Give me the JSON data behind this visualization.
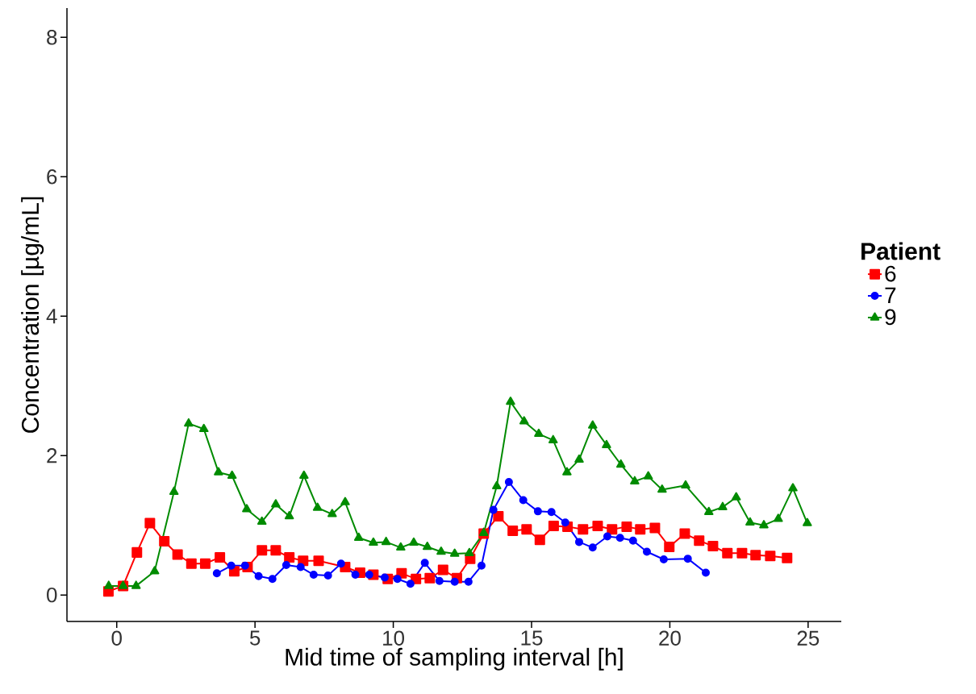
{
  "chart_data": {
    "type": "line",
    "xlabel": "Mid time of sampling interval [h]",
    "ylabel": "Concentration [µg/mL]",
    "legend_title": "Patient",
    "xlim": [
      -1.8,
      26.2
    ],
    "ylim": [
      -0.38,
      8.42
    ],
    "xticks": [
      0,
      5,
      10,
      15,
      20,
      25
    ],
    "yticks": [
      0,
      2,
      4,
      6,
      8
    ],
    "grid": false,
    "legend": "right",
    "line_style": "solid",
    "series": [
      {
        "name": "6",
        "color": "#ff0000",
        "marker": "square",
        "x": [
          -0.3,
          0.23,
          0.73,
          1.2,
          1.72,
          2.2,
          2.7,
          3.2,
          3.73,
          4.25,
          4.73,
          5.25,
          5.75,
          6.24,
          6.74,
          7.3,
          8.26,
          8.8,
          9.28,
          9.8,
          10.3,
          10.82,
          11.32,
          11.8,
          12.3,
          12.78,
          13.27,
          13.8,
          14.32,
          14.82,
          15.3,
          15.8,
          16.3,
          16.86,
          17.39,
          17.91,
          18.44,
          18.93,
          19.46,
          19.98,
          20.54,
          21.06,
          21.56,
          22.08,
          22.61,
          23.1,
          23.63,
          24.24
        ],
        "values": [
          0.05,
          0.13,
          0.61,
          1.03,
          0.77,
          0.58,
          0.45,
          0.45,
          0.54,
          0.34,
          0.4,
          0.64,
          0.64,
          0.54,
          0.49,
          0.49,
          0.4,
          0.32,
          0.29,
          0.23,
          0.31,
          0.23,
          0.24,
          0.36,
          0.24,
          0.52,
          0.88,
          1.13,
          0.92,
          0.94,
          0.79,
          0.99,
          0.98,
          0.94,
          0.99,
          0.94,
          0.98,
          0.94,
          0.96,
          0.69,
          0.88,
          0.78,
          0.7,
          0.6,
          0.6,
          0.57,
          0.56,
          0.53
        ]
      },
      {
        "name": "7",
        "color": "#0000ff",
        "marker": "circle",
        "x": [
          3.62,
          4.14,
          4.64,
          5.13,
          5.63,
          6.13,
          6.65,
          7.12,
          7.64,
          8.11,
          8.63,
          9.13,
          9.69,
          10.15,
          10.62,
          11.14,
          11.67,
          12.22,
          12.72,
          13.19,
          13.62,
          14.18,
          14.7,
          15.23,
          15.72,
          16.22,
          16.72,
          17.21,
          17.74,
          18.2,
          18.67,
          19.17,
          19.78,
          20.65,
          21.3
        ],
        "values": [
          0.31,
          0.42,
          0.42,
          0.27,
          0.23,
          0.43,
          0.4,
          0.29,
          0.28,
          0.45,
          0.29,
          0.29,
          0.25,
          0.23,
          0.16,
          0.46,
          0.2,
          0.19,
          0.19,
          0.42,
          1.22,
          1.62,
          1.36,
          1.2,
          1.19,
          1.04,
          0.76,
          0.68,
          0.84,
          0.82,
          0.78,
          0.62,
          0.51,
          0.52,
          0.32
        ]
      },
      {
        "name": "9",
        "color": "#008b00",
        "marker": "triangle",
        "x": [
          -0.29,
          0.23,
          0.7,
          1.37,
          2.07,
          2.6,
          3.15,
          3.68,
          4.17,
          4.7,
          5.25,
          5.75,
          6.24,
          6.77,
          7.26,
          7.79,
          8.26,
          8.75,
          9.28,
          9.74,
          10.27,
          10.74,
          11.23,
          11.73,
          12.22,
          12.75,
          13.27,
          13.74,
          14.24,
          14.73,
          15.26,
          15.78,
          16.28,
          16.72,
          17.21,
          17.71,
          18.23,
          18.73,
          19.22,
          19.72,
          20.57,
          21.41,
          21.91,
          22.4,
          22.9,
          23.4,
          23.92,
          24.45,
          24.97
        ],
        "values": [
          0.13,
          0.13,
          0.13,
          0.34,
          1.48,
          2.46,
          2.38,
          1.76,
          1.71,
          1.23,
          1.05,
          1.3,
          1.13,
          1.71,
          1.25,
          1.16,
          1.33,
          0.82,
          0.75,
          0.76,
          0.68,
          0.75,
          0.69,
          0.62,
          0.59,
          0.6,
          0.89,
          1.56,
          2.77,
          2.49,
          2.31,
          2.22,
          1.76,
          1.94,
          2.43,
          2.15,
          1.87,
          1.63,
          1.7,
          1.51,
          1.57,
          1.19,
          1.26,
          1.4,
          1.04,
          1.0,
          1.09,
          1.53,
          1.03
        ]
      }
    ]
  }
}
